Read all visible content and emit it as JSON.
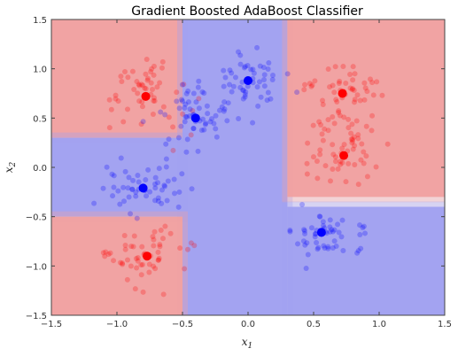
{
  "chart_data": {
    "type": "scatter",
    "title": "Gradient Boosted AdaBoost Classifier",
    "xlabel": "x1",
    "ylabel": "x2",
    "xlim": [
      -1.5,
      1.5
    ],
    "ylim": [
      -1.5,
      1.5
    ],
    "x_ticks": [
      "−1.5",
      "−1.0",
      "−0.5",
      "0.0",
      "0.5",
      "1.0",
      "1.5"
    ],
    "y_ticks": [
      "1.5",
      "1.0",
      "0.5",
      "0.0",
      "−0.5",
      "−1.0",
      "−1.5"
    ],
    "grid": false,
    "colors": {
      "class_pos": "#ff0000",
      "class_neg": "#0000ff",
      "region_pos": "#f0a0a0",
      "region_neg": "#a0a0f0"
    },
    "background_regions": [
      {
        "class": "positive",
        "x": [
          -1.5,
          -0.5
        ],
        "y": [
          0.3,
          1.5
        ]
      },
      {
        "class": "negative",
        "x": [
          -0.5,
          0.3
        ],
        "y": [
          -1.5,
          1.5
        ]
      },
      {
        "class": "positive",
        "x": [
          0.3,
          1.5
        ],
        "y": [
          -0.3,
          1.5
        ]
      },
      {
        "class": "negative",
        "x": [
          -1.5,
          -0.5
        ],
        "y": [
          -0.5,
          0.3
        ]
      },
      {
        "class": "positive",
        "x": [
          -1.5,
          -0.5
        ],
        "y": [
          -1.5,
          -0.5
        ]
      },
      {
        "class": "negative",
        "x": [
          0.3,
          1.5
        ],
        "y": [
          -1.5,
          -0.4
        ]
      }
    ],
    "series": [
      {
        "class": "red",
        "points": [
          [
            -0.78,
            0.72
          ],
          [
            0.72,
            0.75
          ],
          [
            0.73,
            0.12
          ],
          [
            -0.77,
            -0.9
          ]
        ]
      },
      {
        "class": "blue",
        "points": [
          [
            0.0,
            0.88
          ],
          [
            -0.4,
            0.5
          ],
          [
            -0.8,
            -0.21
          ],
          [
            0.56,
            -0.66
          ]
        ]
      }
    ]
  }
}
